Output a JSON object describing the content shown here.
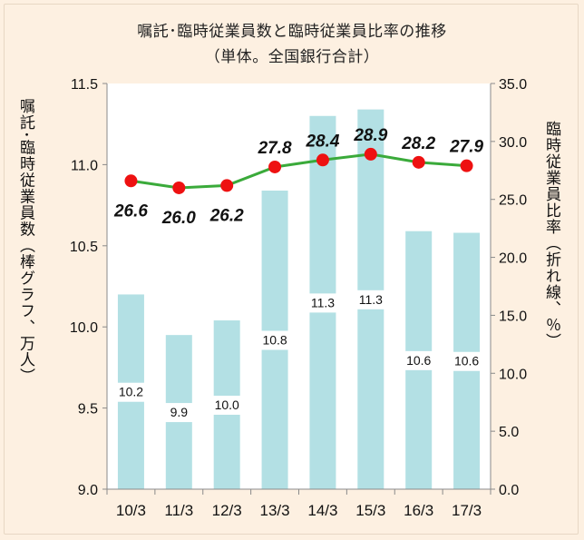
{
  "chart_data": {
    "type": "bar",
    "title": "嘱託･臨時従業員数と臨時従業員比率の推移",
    "subtitle": "（単体。全国銀行合計）",
    "ylabel": "嘱託･臨時従業員数（棒グラフ、万人）",
    "ylabel_right": "臨時従業員比率（折れ線、％）",
    "categories": [
      "10/3",
      "11/3",
      "12/3",
      "13/3",
      "14/3",
      "15/3",
      "16/3",
      "17/3"
    ],
    "ylim": [
      9.0,
      11.5
    ],
    "yticks": [
      "9.0",
      "9.5",
      "10.0",
      "10.5",
      "11.0",
      "11.5"
    ],
    "ylim_right": [
      0,
      35
    ],
    "yticks_right": [
      "0.0",
      "5.0",
      "10.0",
      "15.0",
      "20.0",
      "25.0",
      "30.0",
      "35.0"
    ],
    "series": [
      {
        "type": "bar",
        "axis": "left",
        "values": [
          10.2,
          9.95,
          10.04,
          10.84,
          11.3,
          11.34,
          10.59,
          10.58
        ],
        "labels": [
          "10.2",
          "9.9",
          "10.0",
          "10.8",
          "11.3",
          "11.3",
          "10.6",
          "10.6"
        ]
      },
      {
        "type": "line",
        "axis": "right",
        "values": [
          26.6,
          26.0,
          26.2,
          27.8,
          28.4,
          28.9,
          28.2,
          27.9
        ],
        "labels": [
          "26.6",
          "26.0",
          "26.2",
          "27.8",
          "28.4",
          "28.9",
          "28.2",
          "27.9"
        ]
      }
    ],
    "grid": false,
    "colors": {
      "bar": "#b3e0e4",
      "line": "#3aaa3a",
      "marker": "#ee1111",
      "background": "#fdf0e1",
      "plot_background": "#ffffff"
    }
  }
}
